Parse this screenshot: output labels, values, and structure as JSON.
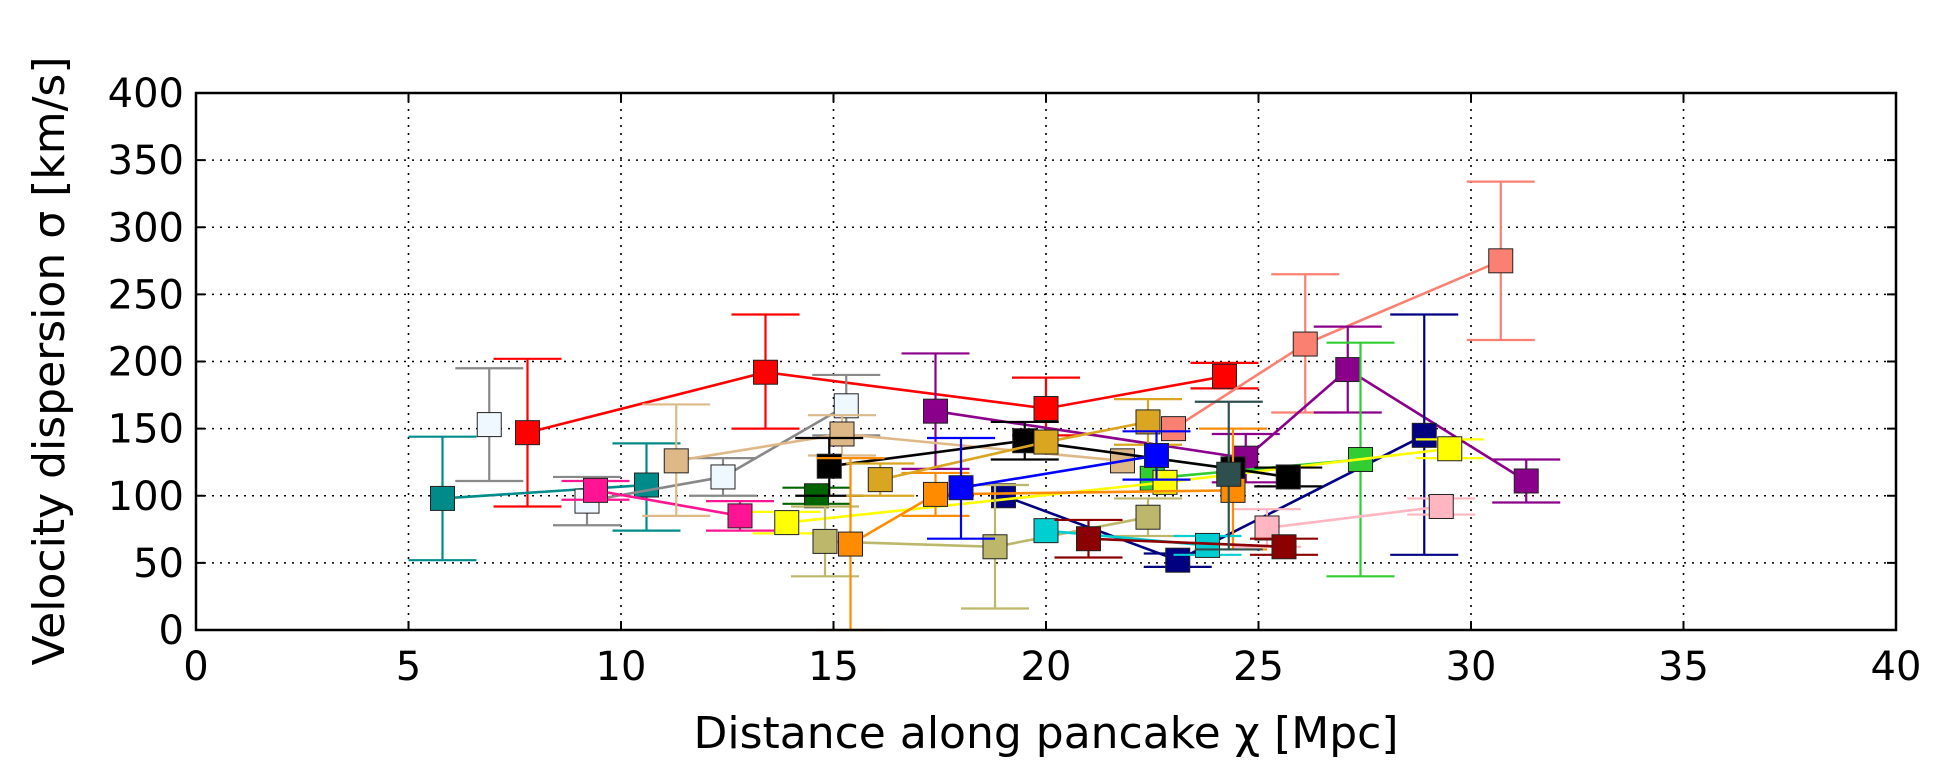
{
  "chart_data": {
    "type": "scatter",
    "title": "",
    "xlabel": "Distance along pancake χ [Mpc]",
    "ylabel": "Velocity dispersion σ [km/s]",
    "xlim": [
      0,
      40
    ],
    "ylim": [
      0,
      400
    ],
    "xticks": [
      "0",
      "5",
      "10",
      "15",
      "20",
      "25",
      "30",
      "35",
      "40"
    ],
    "yticks": [
      "0",
      "50",
      "100",
      "150",
      "200",
      "250",
      "300",
      "350",
      "400"
    ],
    "grid": true,
    "marker": "square",
    "series": [
      {
        "name": "red",
        "color": "#ff0000",
        "points": [
          {
            "x": 7.8,
            "y": 147,
            "lo": 92,
            "hi": 202
          },
          {
            "x": 13.4,
            "y": 192,
            "lo": 150,
            "hi": 235
          },
          {
            "x": 20.0,
            "y": 165,
            "lo": 145,
            "hi": 188
          },
          {
            "x": 24.2,
            "y": 189,
            "lo": 180,
            "hi": 199
          }
        ]
      },
      {
        "name": "salmon",
        "color": "#fa8072",
        "points": [
          {
            "x": 23.0,
            "y": 150
          },
          {
            "x": 26.1,
            "y": 213,
            "lo": 162,
            "hi": 265
          },
          {
            "x": 30.7,
            "y": 275,
            "lo": 216,
            "hi": 334
          }
        ]
      },
      {
        "name": "purple",
        "color": "#8b008b",
        "points": [
          {
            "x": 17.4,
            "y": 163,
            "lo": 120,
            "hi": 206
          },
          {
            "x": 24.7,
            "y": 128,
            "lo": 110,
            "hi": 146
          },
          {
            "x": 27.1,
            "y": 194,
            "lo": 162,
            "hi": 226
          },
          {
            "x": 31.3,
            "y": 111,
            "lo": 95,
            "hi": 127
          }
        ]
      },
      {
        "name": "navy",
        "color": "#000080",
        "points": [
          {
            "x": 19.0,
            "y": 100
          },
          {
            "x": 23.1,
            "y": 52,
            "lo": 47,
            "hi": 57
          },
          {
            "x": 28.9,
            "y": 145,
            "lo": 56,
            "hi": 235
          }
        ]
      },
      {
        "name": "limegreen",
        "color": "#32cd32",
        "points": [
          {
            "x": 22.5,
            "y": 113
          },
          {
            "x": 27.4,
            "y": 127,
            "lo": 40,
            "hi": 214
          }
        ]
      },
      {
        "name": "yellow",
        "color": "#ffff00",
        "points": [
          {
            "x": 13.9,
            "y": 80,
            "lo": 72,
            "hi": 88
          },
          {
            "x": 22.8,
            "y": 110
          },
          {
            "x": 29.5,
            "y": 135,
            "lo": 128,
            "hi": 142
          }
        ]
      },
      {
        "name": "pink",
        "color": "#ffb6c1",
        "points": [
          {
            "x": 25.2,
            "y": 76,
            "lo": 62,
            "hi": 90
          },
          {
            "x": 29.3,
            "y": 92,
            "lo": 86,
            "hi": 98
          }
        ]
      },
      {
        "name": "teal",
        "color": "#008b8b",
        "points": [
          {
            "x": 5.8,
            "y": 98,
            "lo": 52,
            "hi": 144
          },
          {
            "x": 10.6,
            "y": 108,
            "lo": 74,
            "hi": 139
          }
        ]
      },
      {
        "name": "gray-open",
        "color": "#888888",
        "fill": "#f0f8ff",
        "points": [
          {
            "x": 6.9,
            "y": 153,
            "lo": 111,
            "hi": 195
          }
        ]
      },
      {
        "name": "lightsteel-open",
        "color": "#888888",
        "fill": "#f0f8ff",
        "points": [
          {
            "x": 9.2,
            "y": 96,
            "lo": 78,
            "hi": 114
          },
          {
            "x": 12.4,
            "y": 114,
            "lo": 100,
            "hi": 128
          },
          {
            "x": 15.3,
            "y": 167,
            "lo": 145,
            "hi": 190
          }
        ]
      },
      {
        "name": "deeppink",
        "color": "#ff1493",
        "points": [
          {
            "x": 9.4,
            "y": 104,
            "lo": 97,
            "hi": 111
          },
          {
            "x": 12.8,
            "y": 85,
            "lo": 74,
            "hi": 96
          }
        ]
      },
      {
        "name": "burlywood",
        "color": "#deb887",
        "points": [
          {
            "x": 11.3,
            "y": 126,
            "lo": 85,
            "hi": 168
          },
          {
            "x": 15.2,
            "y": 146,
            "lo": 130,
            "hi": 160
          },
          {
            "x": 21.8,
            "y": 126
          }
        ]
      },
      {
        "name": "darkgreen",
        "color": "#006400",
        "points": [
          {
            "x": 14.6,
            "y": 100,
            "lo": 94,
            "hi": 106
          }
        ]
      },
      {
        "name": "black",
        "color": "#000000",
        "points": [
          {
            "x": 14.9,
            "y": 122,
            "lo": 100,
            "hi": 143
          },
          {
            "x": 19.5,
            "y": 141,
            "lo": 127,
            "hi": 155
          },
          {
            "x": 24.4,
            "y": 120
          },
          {
            "x": 25.7,
            "y": 114,
            "lo": 107,
            "hi": 121
          }
        ]
      },
      {
        "name": "darkkhaki",
        "color": "#bdb76b",
        "points": [
          {
            "x": 14.8,
            "y": 66,
            "lo": 40,
            "hi": 92
          },
          {
            "x": 18.8,
            "y": 62,
            "lo": 16,
            "hi": 108
          },
          {
            "x": 22.4,
            "y": 84,
            "lo": 70,
            "hi": 98
          }
        ]
      },
      {
        "name": "darkorange",
        "color": "#ff8c00",
        "points": [
          {
            "x": 15.4,
            "y": 64,
            "lo": 0,
            "hi": 128
          },
          {
            "x": 17.4,
            "y": 101,
            "lo": 85,
            "hi": 117
          },
          {
            "x": 24.4,
            "y": 104,
            "lo": 60,
            "hi": 150
          }
        ]
      },
      {
        "name": "goldenrod",
        "color": "#daa520",
        "points": [
          {
            "x": 16.1,
            "y": 112,
            "lo": 100,
            "hi": 124
          },
          {
            "x": 20.0,
            "y": 140
          },
          {
            "x": 22.4,
            "y": 155,
            "lo": 138,
            "hi": 172
          }
        ]
      },
      {
        "name": "blue",
        "color": "#0000ff",
        "points": [
          {
            "x": 18.0,
            "y": 106,
            "lo": 68,
            "hi": 143
          },
          {
            "x": 22.6,
            "y": 130,
            "lo": 112,
            "hi": 148
          }
        ]
      },
      {
        "name": "cyan",
        "color": "#00ced1",
        "points": [
          {
            "x": 20.0,
            "y": 74
          },
          {
            "x": 23.8,
            "y": 63,
            "lo": 56,
            "hi": 70
          }
        ]
      },
      {
        "name": "darkred",
        "color": "#8b0000",
        "points": [
          {
            "x": 21.0,
            "y": 68,
            "lo": 54,
            "hi": 82
          },
          {
            "x": 25.6,
            "y": 62,
            "lo": 56,
            "hi": 68
          }
        ]
      },
      {
        "name": "darkslategray",
        "color": "#2f4f4f",
        "points": [
          {
            "x": 24.3,
            "y": 116,
            "lo": 60,
            "hi": 170
          }
        ]
      }
    ]
  }
}
